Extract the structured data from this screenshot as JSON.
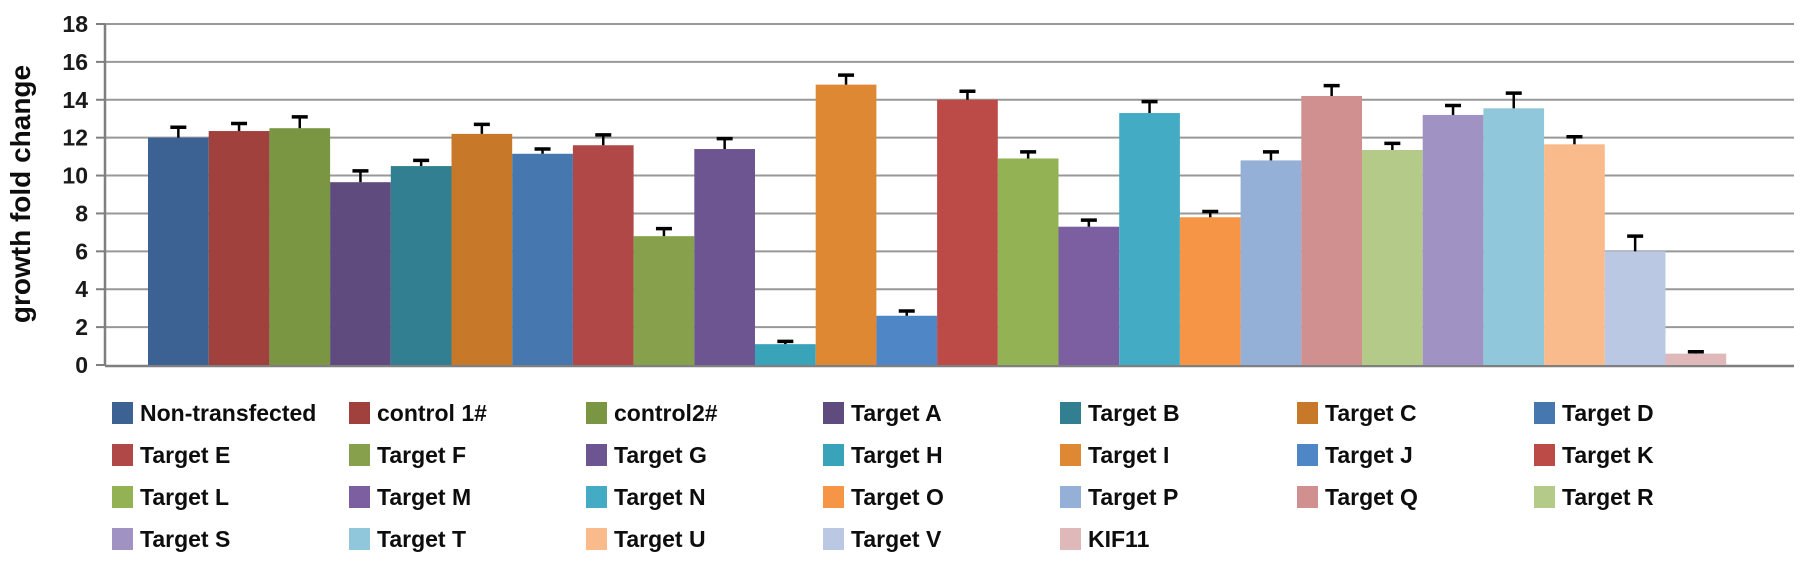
{
  "chart_data": {
    "type": "bar",
    "title": "",
    "xlabel": "",
    "ylabel": "growth fold change",
    "ylim": [
      0,
      18
    ],
    "yticks": [
      0,
      2,
      4,
      6,
      8,
      10,
      12,
      14,
      16,
      18
    ],
    "grid": true,
    "legend_position": "bottom",
    "error_bars": "upper",
    "series": [
      {
        "label": "Non-transfected",
        "value": 12.0,
        "error": 0.55,
        "color": "#3B6292"
      },
      {
        "label": "control 1#",
        "value": 12.35,
        "error": 0.4,
        "color": "#A0413E"
      },
      {
        "label": "control2#",
        "value": 12.5,
        "error": 0.6,
        "color": "#7A9642"
      },
      {
        "label": "Target A",
        "value": 9.65,
        "error": 0.6,
        "color": "#604B7E"
      },
      {
        "label": "Target B",
        "value": 10.5,
        "error": 0.3,
        "color": "#317F90"
      },
      {
        "label": "Target C",
        "value": 12.2,
        "error": 0.5,
        "color": "#C87829"
      },
      {
        "label": "Target D",
        "value": 11.15,
        "error": 0.25,
        "color": "#4677AF"
      },
      {
        "label": "Target E",
        "value": 11.6,
        "error": 0.55,
        "color": "#AF4846"
      },
      {
        "label": "Target F",
        "value": 6.8,
        "error": 0.4,
        "color": "#86A04C"
      },
      {
        "label": "Target G",
        "value": 11.4,
        "error": 0.55,
        "color": "#6C5591"
      },
      {
        "label": "Target H",
        "value": 1.1,
        "error": 0.15,
        "color": "#39A3B9"
      },
      {
        "label": "Target I",
        "value": 14.8,
        "error": 0.5,
        "color": "#DE8834"
      },
      {
        "label": "Target J",
        "value": 2.6,
        "error": 0.25,
        "color": "#4F86C6"
      },
      {
        "label": "Target K",
        "value": 14.0,
        "error": 0.45,
        "color": "#BC4B48"
      },
      {
        "label": "Target L",
        "value": 10.9,
        "error": 0.35,
        "color": "#93B254"
      },
      {
        "label": "Target M",
        "value": 7.3,
        "error": 0.35,
        "color": "#7C5FA0"
      },
      {
        "label": "Target N",
        "value": 13.3,
        "error": 0.6,
        "color": "#44ABC4"
      },
      {
        "label": "Target O",
        "value": 7.8,
        "error": 0.3,
        "color": "#F79546"
      },
      {
        "label": "Target P",
        "value": 10.8,
        "error": 0.45,
        "color": "#94B0D6"
      },
      {
        "label": "Target Q",
        "value": 14.2,
        "error": 0.55,
        "color": "#D0908F"
      },
      {
        "label": "Target R",
        "value": 11.35,
        "error": 0.35,
        "color": "#B3CA89"
      },
      {
        "label": "Target S",
        "value": 13.2,
        "error": 0.5,
        "color": "#A093C4"
      },
      {
        "label": "Target T",
        "value": 13.55,
        "error": 0.8,
        "color": "#91C7DB"
      },
      {
        "label": "Target U",
        "value": 11.65,
        "error": 0.4,
        "color": "#F9BB8B"
      },
      {
        "label": "Target V",
        "value": 6.0,
        "error": 0.8,
        "color": "#BAC8E4"
      },
      {
        "label": "KIF11",
        "value": 0.6,
        "error": 0.1,
        "color": "#DFB9B9"
      }
    ]
  },
  "style_colors": {
    "gridline": "#989898",
    "axis_line": "#7F7F7F",
    "tick_label": "#1A1A1A",
    "axis_title": "#0D0D0D",
    "error_bar": "#000000"
  }
}
